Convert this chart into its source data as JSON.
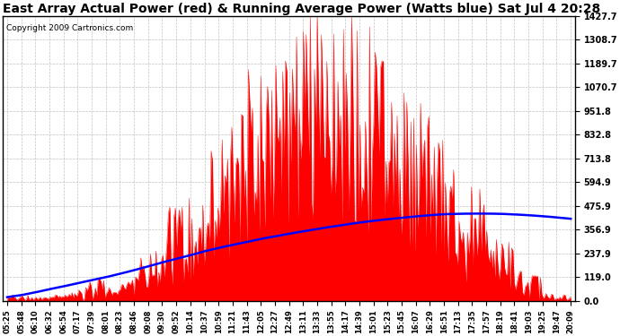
{
  "title": "East Array Actual Power (red) & Running Average Power (Watts blue) Sat Jul 4 20:28",
  "copyright": "Copyright 2009 Cartronics.com",
  "yticks": [
    0.0,
    119.0,
    237.9,
    356.9,
    475.9,
    594.9,
    713.8,
    832.8,
    951.8,
    1070.7,
    1189.7,
    1308.7,
    1427.7
  ],
  "ymax": 1427.7,
  "ymin": 0.0,
  "bar_color": "#ff0000",
  "avg_color": "#0000ff",
  "background_color": "#ffffff",
  "grid_color": "#bbbbbb",
  "title_fontsize": 10,
  "copyright_fontsize": 6.5,
  "xtick_fontsize": 6,
  "ytick_fontsize": 7,
  "x_labels": [
    "05:25",
    "05:48",
    "06:10",
    "06:32",
    "06:54",
    "07:17",
    "07:39",
    "08:01",
    "08:23",
    "08:46",
    "09:08",
    "09:30",
    "09:52",
    "10:14",
    "10:37",
    "10:59",
    "11:21",
    "11:43",
    "12:05",
    "12:27",
    "12:49",
    "13:11",
    "13:33",
    "13:55",
    "14:17",
    "14:39",
    "15:01",
    "15:23",
    "15:45",
    "16:07",
    "16:29",
    "16:51",
    "17:13",
    "17:35",
    "17:57",
    "18:19",
    "18:41",
    "19:03",
    "19:25",
    "19:47",
    "20:09"
  ],
  "blue_line": [
    18,
    28,
    42,
    58,
    72,
    88,
    103,
    118,
    135,
    153,
    172,
    192,
    210,
    228,
    248,
    265,
    280,
    295,
    310,
    323,
    336,
    348,
    360,
    371,
    382,
    392,
    401,
    409,
    416,
    423,
    429,
    434,
    436,
    437,
    437,
    436,
    433,
    429,
    424,
    418,
    411
  ]
}
